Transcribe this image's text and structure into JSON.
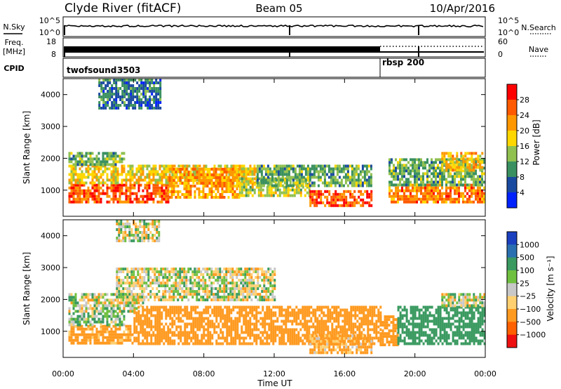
{
  "header": {
    "station": "Clyde River (fitACF)",
    "beam": "Beam 05",
    "date": "10/Apr/2016"
  },
  "strip_panels": {
    "nsky": {
      "label": "N.Sky",
      "ticks": [
        "10^5",
        "10^0"
      ],
      "right_label": "N.Search",
      "right_ticks": [
        "10^5",
        "10^0"
      ]
    },
    "freq": {
      "label_line1": "Freq.",
      "label_line2": "[MHz]",
      "ticks": [
        "18",
        "8"
      ],
      "right_label": "Nave",
      "right_ticks": [
        "60",
        "0"
      ]
    },
    "cpid": {
      "label": "CPID",
      "programs": [
        {
          "name": "twofsound",
          "id": "3503",
          "start_hour": 0
        },
        {
          "name": "rbsp",
          "id": "200",
          "start_hour": 18
        }
      ]
    }
  },
  "chart_data": [
    {
      "type": "heatmap",
      "name": "power",
      "x": {
        "label": "Time UT",
        "ticks": [
          "00:00",
          "04:00",
          "08:00",
          "12:00",
          "16:00",
          "20:00",
          "00:00"
        ],
        "range_hours": [
          0,
          24
        ]
      },
      "ylabel": "Slant Range [km]",
      "yticks": [
        1000,
        2000,
        3000,
        4000
      ],
      "ylim": [
        180,
        4500
      ],
      "colorbar": {
        "label": "Power [dB]",
        "ticks": [
          "28",
          "24",
          "20",
          "16",
          "12",
          "8",
          "4"
        ],
        "colors": [
          "#ff0000",
          "#ff5a00",
          "#ff9800",
          "#ffd700",
          "#90c050",
          "#3a9060",
          "#1a4aa0",
          "#0022ff"
        ]
      },
      "regions": [
        {
          "t0": 0.3,
          "t1": 6.0,
          "r0": 600,
          "r1": 1200,
          "level": 26
        },
        {
          "t0": 0.3,
          "t1": 11.0,
          "r0": 1200,
          "r1": 1800,
          "level": 18
        },
        {
          "t0": 0.3,
          "t1": 3.5,
          "r0": 1800,
          "r1": 2200,
          "level": 12
        },
        {
          "t0": 6.0,
          "t1": 10.0,
          "r0": 800,
          "r1": 1700,
          "level": 22
        },
        {
          "t0": 10.0,
          "t1": 14.0,
          "r0": 800,
          "r1": 1400,
          "level": 16
        },
        {
          "t0": 14.0,
          "t1": 17.5,
          "r0": 500,
          "r1": 1000,
          "level": 26
        },
        {
          "t0": 11.0,
          "t1": 17.5,
          "r0": 1100,
          "r1": 1800,
          "level": 12
        },
        {
          "t0": 18.5,
          "t1": 24.0,
          "r0": 600,
          "r1": 1200,
          "level": 24
        },
        {
          "t0": 18.5,
          "t1": 24.0,
          "r0": 1200,
          "r1": 2000,
          "level": 12
        },
        {
          "t0": 21.5,
          "t1": 23.8,
          "r0": 1600,
          "r1": 2200,
          "level": 20
        },
        {
          "t0": 2.0,
          "t1": 5.5,
          "r0": 3600,
          "r1": 4500,
          "level": 8
        }
      ]
    },
    {
      "type": "heatmap",
      "name": "velocity",
      "x": {
        "label": "Time UT",
        "ticks": [
          "00:00",
          "04:00",
          "08:00",
          "12:00",
          "16:00",
          "20:00",
          "00:00"
        ],
        "range_hours": [
          0,
          24
        ]
      },
      "ylabel": "Slant Range [km]",
      "yticks": [
        1000,
        2000,
        3000,
        4000
      ],
      "ylim": [
        180,
        4500
      ],
      "colorbar": {
        "label": "Velocity [m s⁻¹]",
        "ticks": [
          "1000",
          "500",
          "100",
          "25",
          "−25",
          "−100",
          "−500",
          "−1000"
        ],
        "colors": [
          "#1a40c0",
          "#2a70b0",
          "#3a9a60",
          "#70c040",
          "#c8c8c8",
          "#ffd070",
          "#ff9a20",
          "#ff6000",
          "#ee1010"
        ]
      },
      "regions": [
        {
          "t0": 0.3,
          "t1": 4.0,
          "r0": 600,
          "r1": 1200,
          "level": -200
        },
        {
          "t0": 0.3,
          "t1": 3.5,
          "r0": 1200,
          "r1": 1600,
          "level": 100
        },
        {
          "t0": 0.3,
          "t1": 4.5,
          "r0": 1600,
          "r1": 2200,
          "level": 0
        },
        {
          "t0": 4.0,
          "t1": 18.0,
          "r0": 600,
          "r1": 1800,
          "level": -300
        },
        {
          "t0": 14.0,
          "t1": 17.5,
          "r0": 350,
          "r1": 900,
          "level": -150
        },
        {
          "t0": 18.0,
          "t1": 19.0,
          "r0": 600,
          "r1": 1500,
          "level": -300
        },
        {
          "t0": 19.0,
          "t1": 24.0,
          "r0": 600,
          "r1": 1800,
          "level": 300
        },
        {
          "t0": 21.5,
          "t1": 24.0,
          "r0": 1800,
          "r1": 2200,
          "level": 0
        },
        {
          "t0": 3.0,
          "t1": 12.0,
          "r0": 2000,
          "r1": 3000,
          "level": 0
        },
        {
          "t0": 3.0,
          "t1": 5.5,
          "r0": 3800,
          "r1": 4500,
          "level": 0
        }
      ]
    }
  ]
}
